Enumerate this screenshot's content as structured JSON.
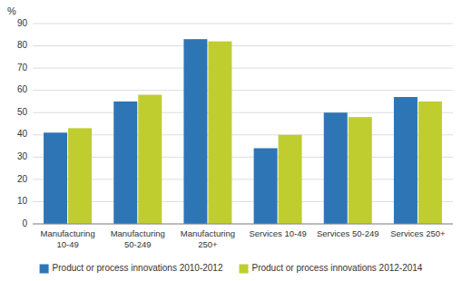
{
  "chart_data": {
    "type": "bar",
    "y_label": "%",
    "categories": [
      "Manufacturing\n10-49",
      "Manufacturing\n50-249",
      "Manufacturing\n250+",
      "Services 10-49",
      "Services 50-249",
      "Services 250+"
    ],
    "series": [
      {
        "name": "Product or process innovations 2010-2012",
        "color": "#2E75B6",
        "values": [
          41,
          55,
          83,
          34,
          50,
          57
        ]
      },
      {
        "name": "Product or process innovations 2012-2014",
        "color": "#BFCE2E",
        "values": [
          43,
          58,
          82,
          40,
          48,
          55
        ]
      }
    ],
    "ylim": [
      0,
      90
    ],
    "yticks": [
      0,
      10,
      20,
      30,
      40,
      50,
      60,
      70,
      80,
      90
    ],
    "grid": true,
    "legend": "bottom"
  }
}
